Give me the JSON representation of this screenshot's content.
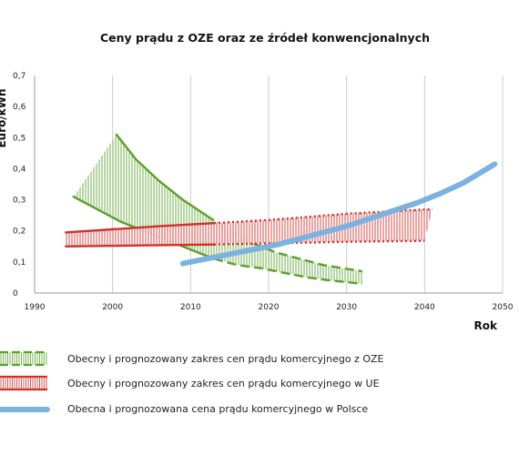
{
  "chart_data": {
    "type": "area",
    "title": "Ceny prądu z OZE oraz ze źródeł konwencjonalnych",
    "xlabel": "Rok",
    "ylabel": "Euro/kWh",
    "xlim": [
      1990,
      2050
    ],
    "ylim": [
      0,
      0.7
    ],
    "x_ticks": [
      "1990",
      "2000",
      "2010",
      "2020",
      "2030",
      "2040",
      "2050"
    ],
    "y_ticks": [
      "0",
      "0,1",
      "0,2",
      "0,3",
      "0,4",
      "0,5",
      "0,6",
      "0,7"
    ],
    "grid": "vertical",
    "legend_position": "bottom",
    "colors": {
      "oze": "#5aa02c",
      "ue": "#d0302b",
      "polska": "#7cb2e0",
      "grid": "#cccccc",
      "axis": "#999999"
    },
    "series": [
      {
        "name": "Obecny i prognozowany zakres cen prądu komercyjnego z OZE",
        "upper_actual": [
          [
            2000.5,
            0.51
          ],
          [
            2003,
            0.43
          ],
          [
            2006,
            0.36
          ],
          [
            2009,
            0.3
          ],
          [
            2012,
            0.25
          ]
        ],
        "upper_forecast": [
          [
            2012,
            0.25
          ],
          [
            2015,
            0.2
          ],
          [
            2018,
            0.16
          ],
          [
            2021,
            0.13
          ],
          [
            2024,
            0.11
          ],
          [
            2027,
            0.09
          ],
          [
            2032,
            0.07
          ]
        ],
        "lower_actual": [
          [
            1995,
            0.31
          ],
          [
            1998,
            0.27
          ],
          [
            2001,
            0.23
          ],
          [
            2004,
            0.2
          ],
          [
            2007,
            0.17
          ],
          [
            2010,
            0.14
          ],
          [
            2013,
            0.11
          ]
        ],
        "lower_forecast": [
          [
            2013,
            0.11
          ],
          [
            2016,
            0.09
          ],
          [
            2019,
            0.08
          ],
          [
            2022,
            0.065
          ],
          [
            2025,
            0.05
          ],
          [
            2028,
            0.04
          ],
          [
            2032,
            0.03
          ]
        ]
      },
      {
        "name": "Obecny i prognozowany zakres cen prądu komercyjnego w UE",
        "upper_actual": [
          [
            1994,
            0.195
          ],
          [
            2000,
            0.205
          ],
          [
            2006,
            0.215
          ],
          [
            2013,
            0.225
          ]
        ],
        "upper_forecast": [
          [
            2013,
            0.225
          ],
          [
            2020,
            0.235
          ],
          [
            2030,
            0.255
          ],
          [
            2041,
            0.27
          ]
        ],
        "lower_actual": [
          [
            1994,
            0.15
          ],
          [
            2000,
            0.152
          ],
          [
            2006,
            0.154
          ],
          [
            2013,
            0.156
          ]
        ],
        "lower_forecast": [
          [
            2013,
            0.156
          ],
          [
            2020,
            0.16
          ],
          [
            2030,
            0.165
          ],
          [
            2040,
            0.168
          ]
        ]
      },
      {
        "name": "Obecna i prognozowana cena prądu komercyjnego w Polsce",
        "points": [
          [
            2009,
            0.095
          ],
          [
            2012,
            0.11
          ],
          [
            2015,
            0.125
          ],
          [
            2018,
            0.14
          ],
          [
            2021,
            0.155
          ],
          [
            2024,
            0.175
          ],
          [
            2027,
            0.195
          ],
          [
            2030,
            0.215
          ],
          [
            2033,
            0.24
          ],
          [
            2036,
            0.265
          ],
          [
            2039,
            0.29
          ],
          [
            2042,
            0.32
          ],
          [
            2045,
            0.355
          ],
          [
            2049,
            0.415
          ]
        ]
      }
    ]
  }
}
